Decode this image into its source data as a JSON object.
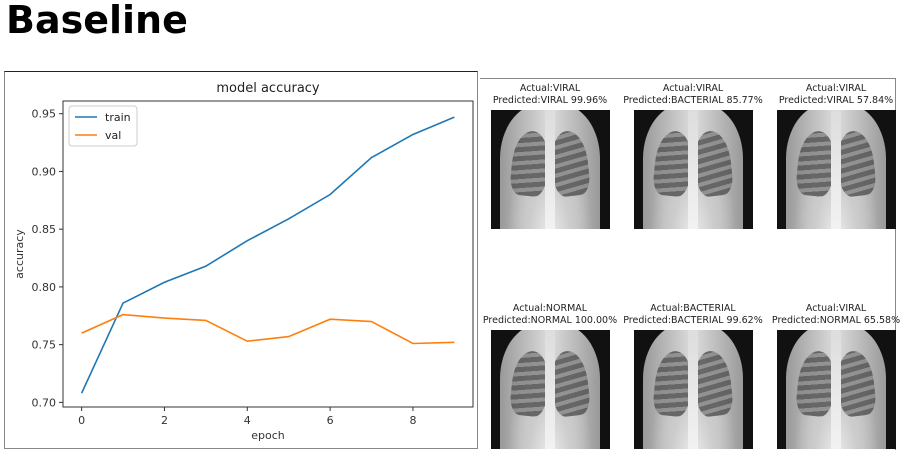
{
  "page_title": "Baseline",
  "chart_data": {
    "type": "line",
    "title": "model accuracy",
    "xlabel": "epoch",
    "ylabel": "accuracy",
    "x": [
      0,
      1,
      2,
      3,
      4,
      5,
      6,
      7,
      8,
      9
    ],
    "series": [
      {
        "name": "train",
        "color": "#1f77b4",
        "values": [
          0.708,
          0.786,
          0.804,
          0.818,
          0.84,
          0.859,
          0.88,
          0.912,
          0.932,
          0.947
        ]
      },
      {
        "name": "val",
        "color": "#ff7f0e",
        "values": [
          0.76,
          0.776,
          0.773,
          0.771,
          0.753,
          0.757,
          0.772,
          0.77,
          0.751,
          0.752
        ]
      }
    ],
    "xlim": [
      -0.45,
      9.45
    ],
    "ylim": [
      0.696,
      0.961
    ],
    "xticks": [
      0,
      2,
      4,
      6,
      8
    ],
    "xtick_labels": [
      "0",
      "2",
      "4",
      "6",
      "8"
    ],
    "yticks": [
      0.7,
      0.75,
      0.8,
      0.85,
      0.9,
      0.95
    ],
    "ytick_labels": [
      "0.70",
      "0.75",
      "0.80",
      "0.85",
      "0.90",
      "0.95"
    ],
    "legend": "top-left",
    "grid": false
  },
  "predictions": [
    {
      "actual": "Actual:VIRAL",
      "predicted": "Predicted:VIRAL 99.96%"
    },
    {
      "actual": "Actual:VIRAL",
      "predicted": "Predicted:BACTERIAL 85.77%"
    },
    {
      "actual": "Actual:VIRAL",
      "predicted": "Predicted:VIRAL 57.84%"
    },
    {
      "actual": "Actual:NORMAL",
      "predicted": "Predicted:NORMAL 100.00%"
    },
    {
      "actual": "Actual:BACTERIAL",
      "predicted": "Predicted:BACTERIAL 99.62%"
    },
    {
      "actual": "Actual:VIRAL",
      "predicted": "Predicted:NORMAL 65.58%"
    }
  ]
}
